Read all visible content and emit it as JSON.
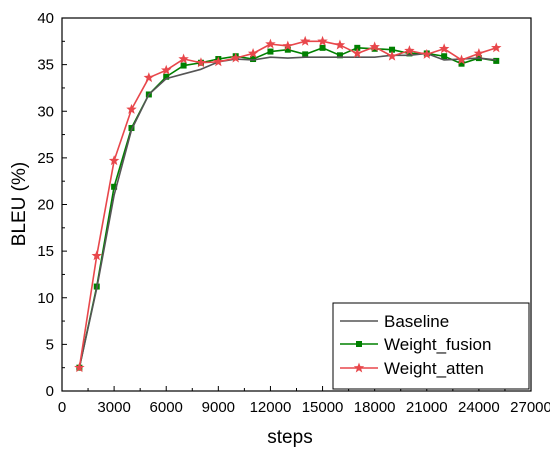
{
  "chart_data": {
    "type": "line",
    "title": "",
    "xlabel": "steps",
    "ylabel": "BLEU (%)",
    "xlim": [
      0,
      27000
    ],
    "ylim": [
      0,
      40
    ],
    "xticks": [
      0,
      3000,
      6000,
      9000,
      12000,
      15000,
      18000,
      21000,
      24000,
      27000
    ],
    "yticks": [
      0,
      5,
      10,
      15,
      20,
      25,
      30,
      35,
      40
    ],
    "grid": false,
    "legend_position": "bottom-right",
    "x": [
      1000,
      2000,
      3000,
      4000,
      5000,
      6000,
      7000,
      8000,
      9000,
      10000,
      11000,
      12000,
      13000,
      14000,
      15000,
      16000,
      17000,
      18000,
      19000,
      20000,
      21000,
      22000,
      23000,
      24000,
      25000
    ],
    "series": [
      {
        "name": "Baseline",
        "color": "#555555",
        "marker": "none",
        "values": [
          2.5,
          11.0,
          21.0,
          28.0,
          31.8,
          33.5,
          34.0,
          34.5,
          35.3,
          35.6,
          35.5,
          35.8,
          35.7,
          35.8,
          35.8,
          35.8,
          35.8,
          35.8,
          36.0,
          36.0,
          36.2,
          35.5,
          35.6,
          35.7,
          35.5
        ]
      },
      {
        "name": "Weight_fusion",
        "color": "#008000",
        "marker": "square",
        "values": [
          2.5,
          11.2,
          21.9,
          28.2,
          31.8,
          33.7,
          34.9,
          35.2,
          35.6,
          35.9,
          35.6,
          36.4,
          36.6,
          36.1,
          36.8,
          36.0,
          36.8,
          36.7,
          36.6,
          36.2,
          36.2,
          35.9,
          35.1,
          35.7,
          35.4
        ]
      },
      {
        "name": "Weight_atten",
        "color": "#e8474b",
        "marker": "star",
        "values": [
          2.5,
          14.5,
          24.7,
          30.2,
          33.6,
          34.4,
          35.6,
          35.2,
          35.3,
          35.7,
          36.2,
          37.2,
          37.0,
          37.5,
          37.5,
          37.1,
          36.2,
          36.9,
          35.9,
          36.5,
          36.1,
          36.7,
          35.5,
          36.2,
          36.8
        ]
      }
    ]
  }
}
